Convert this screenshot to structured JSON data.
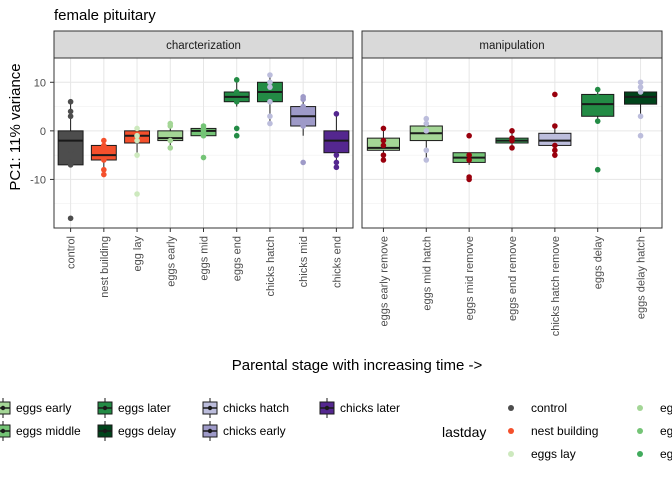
{
  "chart_data": {
    "type": "box",
    "title": "female pituitary",
    "ylabel": "PC1: 11% variance",
    "xlabel": "Parental stage with increasing time ->",
    "ylim": [
      -20,
      15
    ],
    "yticks": [
      -10,
      0,
      10
    ],
    "grid": true,
    "colors": {
      "control": "#4d4d4d",
      "nest building": "#f4502c",
      "egg lay": "#cde9be",
      "eggs early": "#a4d696",
      "eggs middle": "#74c476",
      "eggs mid": "#74c476",
      "eggs end": "#41ab5d",
      "eggs later": "#238b45",
      "eggs delay": "#00441b",
      "chicks hatch": "#bcbddc",
      "chicks mid": "#9e9ac8",
      "chicks early": "#9e9ac8",
      "chicks later": "#54278f",
      "chicks end": "#54278f"
    },
    "panels": [
      {
        "label": "charcterization",
        "groups": [
          {
            "name": "control",
            "fill": "#4d4d4d",
            "point": "#4d4d4d",
            "q1": -7,
            "median": -2,
            "q3": 0,
            "whiskerLow": -7,
            "whiskerHigh": 6,
            "outliers": [
              -18,
              6,
              4,
              3,
              -6.5,
              -4,
              -7
            ]
          },
          {
            "name": "nest building",
            "fill": "#f4502c",
            "point": "#f4502c",
            "q1": -6,
            "median": -5,
            "q3": -3,
            "whiskerLow": -9,
            "whiskerHigh": -2,
            "outliers": [
              -9,
              -8,
              -2,
              -3,
              -6
            ]
          },
          {
            "name": "egg lay",
            "fill": "#f4502c",
            "point": "#cde9be",
            "q1": -2.5,
            "median": -1,
            "q3": 0,
            "whiskerLow": -5,
            "whiskerHigh": 0.5,
            "outliers": [
              -13,
              -5,
              0.5,
              -2,
              -1
            ]
          },
          {
            "name": "eggs early",
            "fill": "#a4d696",
            "point": "#a4d696",
            "q1": -2,
            "median": -1.5,
            "q3": 0,
            "whiskerLow": -3.5,
            "whiskerHigh": 1.5,
            "outliers": [
              -3.5,
              1.5,
              1,
              -2
            ]
          },
          {
            "name": "eggs mid",
            "fill": "#74c476",
            "point": "#74c476",
            "q1": -1,
            "median": 0,
            "q3": 0.5,
            "whiskerLow": -1,
            "whiskerHigh": 1,
            "outliers": [
              -5.5,
              1,
              0,
              -1,
              0.5
            ]
          },
          {
            "name": "eggs end",
            "fill": "#238b45",
            "point": "#238b45",
            "q1": 6,
            "median": 7,
            "q3": 8,
            "whiskerLow": 5,
            "whiskerHigh": 10.5,
            "outliers": [
              10.5,
              0.5,
              -1,
              6,
              8
            ]
          },
          {
            "name": "chicks hatch",
            "fill": "#238b45",
            "point": "#bcbddc",
            "q1": 6,
            "median": 8,
            "q3": 10,
            "whiskerLow": 1.5,
            "whiskerHigh": 11.5,
            "outliers": [
              11.5,
              10,
              9,
              6,
              3,
              1.5
            ]
          },
          {
            "name": "chicks mid",
            "fill": "#9e9ac8",
            "point": "#9e9ac8",
            "q1": 1,
            "median": 3,
            "q3": 5,
            "whiskerLow": -1,
            "whiskerHigh": 7,
            "outliers": [
              7,
              6.5,
              5,
              4,
              2,
              1,
              -6.5
            ]
          },
          {
            "name": "chicks end",
            "fill": "#54278f",
            "point": "#54278f",
            "q1": -4.5,
            "median": -2,
            "q3": 0,
            "whiskerLow": -7.5,
            "whiskerHigh": 3.5,
            "outliers": [
              3.5,
              -6.5,
              -7.5,
              -5,
              -1
            ]
          }
        ]
      },
      {
        "label": "manipulation",
        "groups": [
          {
            "name": "eggs early remove",
            "fill": "#a4d696",
            "point": "#99000d",
            "q1": -4,
            "median": -3.5,
            "q3": -1.5,
            "whiskerLow": -6,
            "whiskerHigh": 0.5,
            "outliers": [
              0.5,
              -6,
              -5,
              -3,
              -2
            ]
          },
          {
            "name": "eggs mid hatch",
            "fill": "#a4d696",
            "point": "#bcbddc",
            "q1": -2,
            "median": -0.5,
            "q3": 1,
            "whiskerLow": -6,
            "whiskerHigh": 2.5,
            "outliers": [
              2.5,
              1.5,
              -4,
              -6,
              0
            ]
          },
          {
            "name": "eggs mid remove",
            "fill": "#74c476",
            "point": "#99000d",
            "q1": -6.5,
            "median": -5.5,
            "q3": -4.5,
            "whiskerLow": -7,
            "whiskerHigh": -4.5,
            "outliers": [
              -1,
              -9.5,
              -10,
              -5,
              -6
            ]
          },
          {
            "name": "eggs end remove",
            "fill": "#41ab5d",
            "point": "#99000d",
            "q1": -2.5,
            "median": -2,
            "q3": -1.5,
            "whiskerLow": -3,
            "whiskerHigh": 0,
            "outliers": [
              0,
              -3.5,
              -2,
              -1.5
            ]
          },
          {
            "name": "chicks hatch remove",
            "fill": "#bcbddc",
            "point": "#99000d",
            "q1": -3,
            "median": -2,
            "q3": -0.5,
            "whiskerLow": -5,
            "whiskerHigh": 1,
            "outliers": [
              7.5,
              -5,
              -4,
              -3,
              1
            ]
          },
          {
            "name": "eggs delay",
            "fill": "#238b45",
            "point": "#238b45",
            "q1": 3,
            "median": 5.5,
            "q3": 7.5,
            "whiskerLow": 2,
            "whiskerHigh": 8.5,
            "outliers": [
              8.5,
              2,
              -8,
              7
            ]
          },
          {
            "name": "eggs delay hatch",
            "fill": "#00441b",
            "point": "#bcbddc",
            "q1": 5.5,
            "median": 7,
            "q3": 8,
            "whiskerLow": 3,
            "whiskerHigh": 10,
            "outliers": [
              10,
              9,
              3,
              -1,
              8
            ]
          }
        ]
      }
    ],
    "legend_fill": {
      "entries": [
        {
          "label": "eggs early",
          "fill": "#a4d696"
        },
        {
          "label": "eggs middle",
          "fill": "#74c476"
        },
        {
          "label": "eggs later",
          "fill": "#238b45"
        },
        {
          "label": "eggs delay",
          "fill": "#00441b"
        },
        {
          "label": "chicks hatch",
          "fill": "#bcbddc"
        },
        {
          "label": "chicks early",
          "fill": "#9e9ac8"
        },
        {
          "label": "chicks later",
          "fill": "#54278f"
        }
      ]
    },
    "legend_color": {
      "title": "lastday",
      "entries": [
        {
          "label": "control",
          "color": "#4d4d4d"
        },
        {
          "label": "nest building",
          "color": "#f4502c"
        },
        {
          "label": "eggs lay",
          "color": "#cde9be"
        },
        {
          "label": "eggs early",
          "color": "#a4d696"
        },
        {
          "label": "eggs middle",
          "color": "#74c476"
        },
        {
          "label": "eggs later",
          "color": "#41ab5d"
        }
      ]
    }
  }
}
